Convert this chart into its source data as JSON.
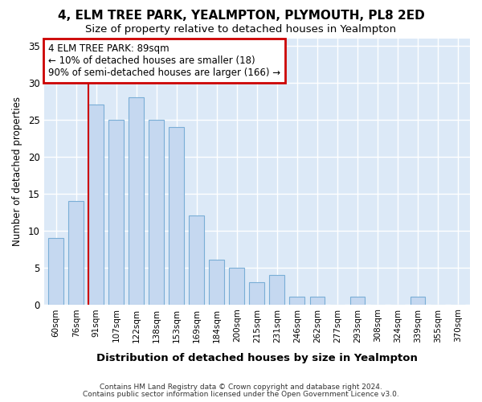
{
  "title": "4, ELM TREE PARK, YEALMPTON, PLYMOUTH, PL8 2ED",
  "subtitle": "Size of property relative to detached houses in Yealmpton",
  "xlabel": "Distribution of detached houses by size in Yealmpton",
  "ylabel": "Number of detached properties",
  "categories": [
    "60sqm",
    "76sqm",
    "91sqm",
    "107sqm",
    "122sqm",
    "138sqm",
    "153sqm",
    "169sqm",
    "184sqm",
    "200sqm",
    "215sqm",
    "231sqm",
    "246sqm",
    "262sqm",
    "277sqm",
    "293sqm",
    "308sqm",
    "324sqm",
    "339sqm",
    "355sqm",
    "370sqm"
  ],
  "values": [
    9,
    14,
    27,
    25,
    28,
    25,
    24,
    12,
    6,
    5,
    3,
    4,
    1,
    1,
    0,
    1,
    0,
    0,
    1,
    0,
    0
  ],
  "bar_color": "#c5d8f0",
  "bar_edge_color": "#7aaed6",
  "annotation_box_text": "4 ELM TREE PARK: 89sqm\n← 10% of detached houses are smaller (18)\n90% of semi-detached houses are larger (166) →",
  "annotation_box_color": "#ffffff",
  "annotation_box_edge": "#cc0000",
  "marker_line_color": "#cc0000",
  "footer_line1": "Contains HM Land Registry data © Crown copyright and database right 2024.",
  "footer_line2": "Contains public sector information licensed under the Open Government Licence v3.0.",
  "fig_bg_color": "#ffffff",
  "plot_bg_color": "#dce9f7",
  "grid_color": "#ffffff",
  "ylim": [
    0,
    36
  ],
  "yticks": [
    0,
    5,
    10,
    15,
    20,
    25,
    30,
    35
  ],
  "marker_idx": 2
}
